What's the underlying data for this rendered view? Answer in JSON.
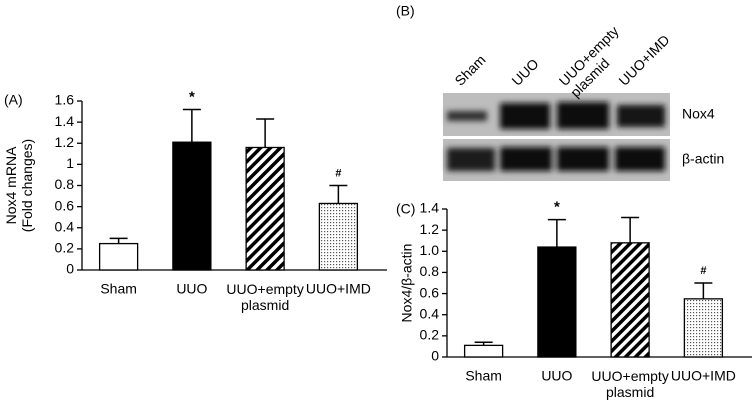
{
  "chart_data": [
    {
      "type": "bar",
      "panel": "(A)",
      "ylabel": "Nox4 mRNA\n(Fold changes)",
      "categories": [
        "Sham",
        "UUO",
        "UUO+empty\nplasmid",
        "UUO+IMD"
      ],
      "values": [
        0.25,
        1.21,
        1.16,
        0.63
      ],
      "errors": [
        0.05,
        0.31,
        0.27,
        0.17
      ],
      "fills": [
        "white",
        "black",
        "stripes",
        "dots"
      ],
      "annotations": [
        {
          "index": 1,
          "text": "*"
        },
        {
          "index": 3,
          "text": "#"
        }
      ],
      "ylim": [
        0,
        1.6
      ],
      "yticks": [
        0,
        0.2,
        0.4,
        0.6,
        0.8,
        1,
        1.2,
        1.4,
        1.6
      ]
    },
    {
      "type": "bar",
      "panel": "(C)",
      "ylabel": "Nox4/β-actin",
      "categories": [
        "Sham",
        "UUO",
        "UUO+empty\nplasmid",
        "UUO+IMD"
      ],
      "values": [
        0.11,
        1.04,
        1.08,
        0.55
      ],
      "errors": [
        0.03,
        0.26,
        0.24,
        0.15
      ],
      "fills": [
        "white",
        "black",
        "stripes",
        "dots"
      ],
      "annotations": [
        {
          "index": 1,
          "text": "*"
        },
        {
          "index": 3,
          "text": "#"
        }
      ],
      "ylim": [
        0,
        1.4
      ],
      "yticks": [
        0,
        0.2,
        0.4,
        0.6,
        0.8,
        {
          "value": 1,
          "label": "1.0"
        },
        1.2,
        1.4
      ]
    }
  ],
  "blot": {
    "panel": "(B)",
    "lanes": [
      "Sham",
      "UUO",
      "UUO+empty\nplasmid",
      "UUO+IMD"
    ],
    "rows": [
      "Nox4",
      "β-actin"
    ]
  }
}
